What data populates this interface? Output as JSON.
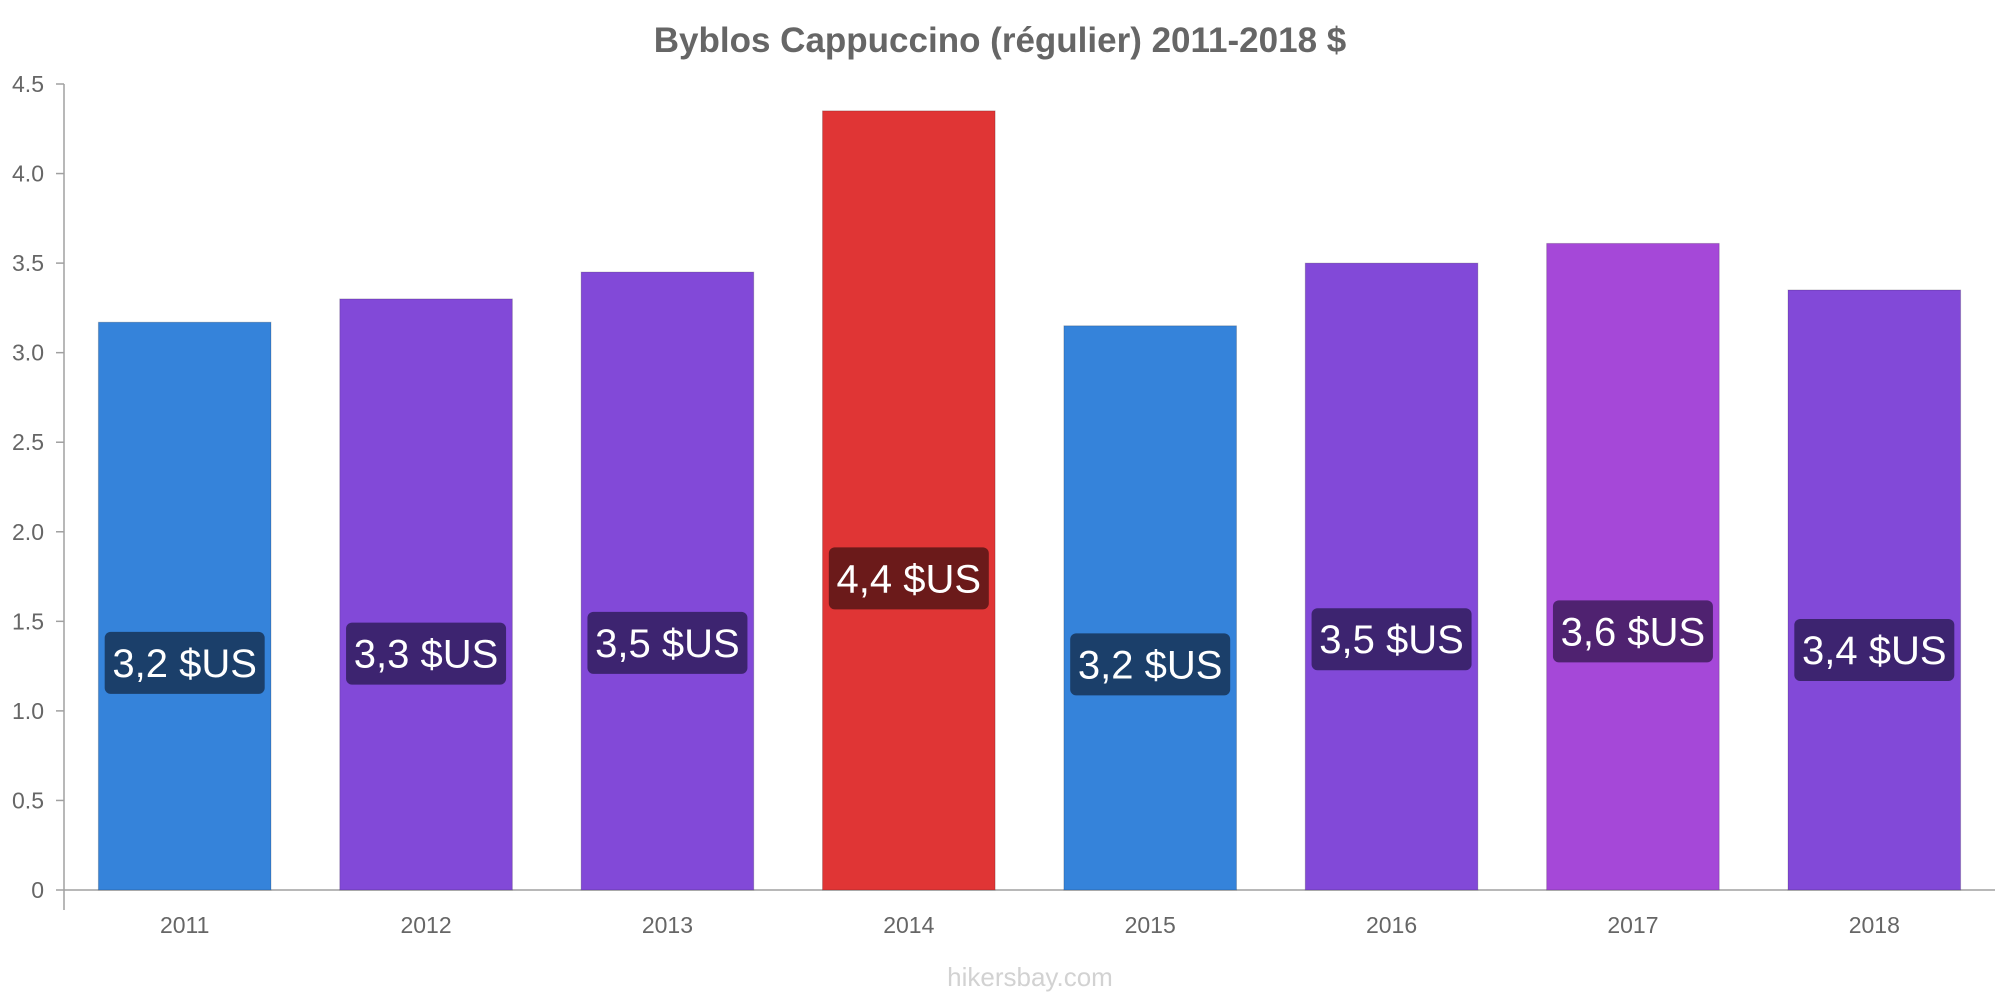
{
  "chart_data": {
    "type": "bar",
    "title": "Byblos Cappuccino (régulier) 2011-2018 $",
    "xlabel": "",
    "ylabel": "",
    "categories": [
      "2011",
      "2012",
      "2013",
      "2014",
      "2015",
      "2016",
      "2017",
      "2018"
    ],
    "values": [
      3.17,
      3.3,
      3.45,
      4.35,
      3.15,
      3.5,
      3.61,
      3.35
    ],
    "data_labels": [
      "3,2 $US",
      "3,3 $US",
      "3,5 $US",
      "4,4 $US",
      "3,2 $US",
      "3,5 $US",
      "3,6 $US",
      "3,4 $US"
    ],
    "bar_colors": [
      "#3583da",
      "#8249d8",
      "#8249d8",
      "#e03535",
      "#3583da",
      "#8249d8",
      "#a548d8",
      "#8249d8"
    ],
    "label_box_colors": [
      "#1b3f6a",
      "#3d2470",
      "#3d2470",
      "#6b1a1a",
      "#1b3f6a",
      "#3d2470",
      "#4f2270",
      "#3d2470"
    ],
    "ylim": [
      0,
      4.5
    ],
    "yticks": [
      {
        "value": 0,
        "label": "0"
      },
      {
        "value": 0.5,
        "label": "0.5"
      },
      {
        "value": 1.0,
        "label": "1.0"
      },
      {
        "value": 1.5,
        "label": "1.5"
      },
      {
        "value": 2.0,
        "label": "2.0"
      },
      {
        "value": 2.5,
        "label": "2.5"
      },
      {
        "value": 3.0,
        "label": "3.0"
      },
      {
        "value": 3.5,
        "label": "3.5"
      },
      {
        "value": 4.0,
        "label": "4.0"
      },
      {
        "value": 4.5,
        "label": "4.5"
      }
    ],
    "grid": false,
    "legend": "none"
  },
  "source": "hikersbay.com"
}
